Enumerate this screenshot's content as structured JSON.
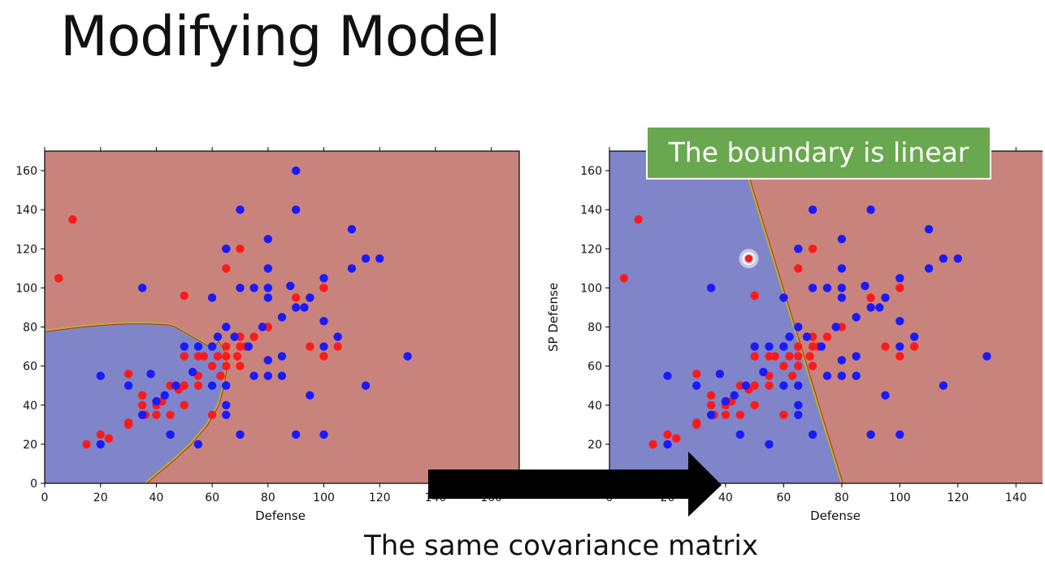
{
  "slide": {
    "title": "Modifying Model",
    "callout": "The boundary is linear",
    "caption": "The same covariance matrix"
  },
  "colors": {
    "class_red_region": "#c8847c",
    "class_blue_region": "#7f85c8",
    "point_red": "#ff1a1a",
    "point_blue": "#1a1aff",
    "callout_bg": "#6aa84f",
    "arrow": "#000000"
  },
  "chart_data": [
    {
      "type": "scatter",
      "title": "",
      "xlabel": "Defense",
      "ylabel": "",
      "xlim": [
        0,
        170
      ],
      "ylim": [
        0,
        170
      ],
      "xticks": [
        0,
        20,
        40,
        60,
        80,
        100,
        120,
        140,
        160
      ],
      "yticks": [
        0,
        20,
        40,
        60,
        80,
        100,
        120,
        140,
        160
      ],
      "boundary": "quadratic",
      "series": [
        {
          "class": "red",
          "points": [
            [
              5,
              105
            ],
            [
              10,
              135
            ],
            [
              15,
              20
            ],
            [
              20,
              25
            ],
            [
              23,
              23
            ],
            [
              30,
              30
            ],
            [
              30,
              56
            ],
            [
              30,
              31
            ],
            [
              35,
              45
            ],
            [
              35,
              40
            ],
            [
              36,
              35
            ],
            [
              35,
              45
            ],
            [
              40,
              40
            ],
            [
              40,
              35
            ],
            [
              42,
              42
            ],
            [
              45,
              35
            ],
            [
              45,
              50
            ],
            [
              48,
              48
            ],
            [
              50,
              40
            ],
            [
              50,
              50
            ],
            [
              50,
              65
            ],
            [
              50,
              96
            ],
            [
              55,
              50
            ],
            [
              55,
              55
            ],
            [
              55,
              65
            ],
            [
              57,
              65
            ],
            [
              60,
              35
            ],
            [
              60,
              70
            ],
            [
              60,
              60
            ],
            [
              62,
              65
            ],
            [
              63,
              55
            ],
            [
              65,
              50
            ],
            [
              65,
              60
            ],
            [
              65,
              65
            ],
            [
              65,
              70
            ],
            [
              65,
              110
            ],
            [
              65,
              120
            ],
            [
              69,
              65
            ],
            [
              70,
              60
            ],
            [
              70,
              70
            ],
            [
              70,
              75
            ],
            [
              70,
              120
            ],
            [
              72,
              70
            ],
            [
              75,
              75
            ],
            [
              80,
              55
            ],
            [
              80,
              80
            ],
            [
              90,
              95
            ],
            [
              95,
              70
            ],
            [
              100,
              65
            ],
            [
              100,
              100
            ],
            [
              105,
              70
            ]
          ]
        },
        {
          "class": "blue",
          "points": [
            [
              20,
              20
            ],
            [
              20,
              55
            ],
            [
              30,
              50
            ],
            [
              35,
              35
            ],
            [
              35,
              100
            ],
            [
              38,
              56
            ],
            [
              40,
              42
            ],
            [
              43,
              45
            ],
            [
              45,
              25
            ],
            [
              47,
              50
            ],
            [
              50,
              70
            ],
            [
              53,
              57
            ],
            [
              55,
              20
            ],
            [
              55,
              70
            ],
            [
              60,
              95
            ],
            [
              60,
              50
            ],
            [
              60,
              70
            ],
            [
              62,
              75
            ],
            [
              65,
              40
            ],
            [
              65,
              35
            ],
            [
              65,
              50
            ],
            [
              65,
              80
            ],
            [
              65,
              120
            ],
            [
              68,
              75
            ],
            [
              70,
              25
            ],
            [
              70,
              100
            ],
            [
              70,
              140
            ],
            [
              73,
              70
            ],
            [
              75,
              100
            ],
            [
              75,
              55
            ],
            [
              78,
              80
            ],
            [
              80,
              125
            ],
            [
              80,
              110
            ],
            [
              80,
              100
            ],
            [
              80,
              95
            ],
            [
              80,
              63
            ],
            [
              80,
              55
            ],
            [
              85,
              65
            ],
            [
              85,
              55
            ],
            [
              85,
              85
            ],
            [
              88,
              101
            ],
            [
              90,
              160
            ],
            [
              90,
              140
            ],
            [
              90,
              90
            ],
            [
              90,
              25
            ],
            [
              93,
              90
            ],
            [
              95,
              95
            ],
            [
              95,
              45
            ],
            [
              100,
              105
            ],
            [
              100,
              83
            ],
            [
              100,
              70
            ],
            [
              100,
              25
            ],
            [
              105,
              75
            ],
            [
              110,
              130
            ],
            [
              110,
              110
            ],
            [
              115,
              115
            ],
            [
              115,
              50
            ],
            [
              120,
              115
            ],
            [
              130,
              65
            ]
          ]
        }
      ]
    },
    {
      "type": "scatter",
      "title": "",
      "xlabel": "Defense",
      "ylabel": "SP Defense",
      "xlim": [
        0,
        150
      ],
      "ylim": [
        0,
        170
      ],
      "xticks": [
        0,
        20,
        40,
        60,
        80,
        100,
        120,
        140
      ],
      "yticks": [
        0,
        20,
        40,
        60,
        80,
        100,
        120,
        140,
        160
      ],
      "boundary": "linear",
      "highlight": [
        48,
        115
      ],
      "series": [
        {
          "class": "red",
          "points": [
            [
              5,
              105
            ],
            [
              10,
              135
            ],
            [
              15,
              20
            ],
            [
              20,
              25
            ],
            [
              23,
              23
            ],
            [
              30,
              30
            ],
            [
              30,
              56
            ],
            [
              30,
              31
            ],
            [
              35,
              45
            ],
            [
              35,
              40
            ],
            [
              36,
              35
            ],
            [
              40,
              40
            ],
            [
              40,
              35
            ],
            [
              42,
              42
            ],
            [
              45,
              35
            ],
            [
              45,
              50
            ],
            [
              48,
              48
            ],
            [
              48,
              115
            ],
            [
              50,
              40
            ],
            [
              50,
              50
            ],
            [
              50,
              65
            ],
            [
              50,
              96
            ],
            [
              55,
              50
            ],
            [
              55,
              55
            ],
            [
              55,
              65
            ],
            [
              57,
              65
            ],
            [
              60,
              35
            ],
            [
              60,
              70
            ],
            [
              60,
              60
            ],
            [
              62,
              65
            ],
            [
              63,
              55
            ],
            [
              65,
              50
            ],
            [
              65,
              60
            ],
            [
              65,
              65
            ],
            [
              65,
              70
            ],
            [
              65,
              110
            ],
            [
              65,
              120
            ],
            [
              69,
              65
            ],
            [
              70,
              60
            ],
            [
              70,
              70
            ],
            [
              70,
              75
            ],
            [
              70,
              120
            ],
            [
              72,
              70
            ],
            [
              75,
              75
            ],
            [
              80,
              55
            ],
            [
              80,
              80
            ],
            [
              90,
              95
            ],
            [
              95,
              70
            ],
            [
              100,
              65
            ],
            [
              100,
              100
            ],
            [
              105,
              70
            ]
          ]
        },
        {
          "class": "blue",
          "points": [
            [
              20,
              20
            ],
            [
              20,
              55
            ],
            [
              30,
              50
            ],
            [
              35,
              35
            ],
            [
              35,
              100
            ],
            [
              38,
              56
            ],
            [
              40,
              42
            ],
            [
              43,
              45
            ],
            [
              45,
              25
            ],
            [
              47,
              50
            ],
            [
              50,
              70
            ],
            [
              53,
              57
            ],
            [
              55,
              20
            ],
            [
              55,
              70
            ],
            [
              60,
              95
            ],
            [
              60,
              50
            ],
            [
              60,
              70
            ],
            [
              62,
              75
            ],
            [
              65,
              40
            ],
            [
              65,
              35
            ],
            [
              65,
              50
            ],
            [
              65,
              80
            ],
            [
              65,
              120
            ],
            [
              68,
              75
            ],
            [
              70,
              25
            ],
            [
              70,
              100
            ],
            [
              70,
              140
            ],
            [
              73,
              70
            ],
            [
              75,
              100
            ],
            [
              75,
              55
            ],
            [
              78,
              80
            ],
            [
              80,
              125
            ],
            [
              80,
              110
            ],
            [
              80,
              100
            ],
            [
              80,
              95
            ],
            [
              80,
              63
            ],
            [
              80,
              55
            ],
            [
              85,
              65
            ],
            [
              85,
              55
            ],
            [
              85,
              85
            ],
            [
              88,
              101
            ],
            [
              90,
              160
            ],
            [
              90,
              140
            ],
            [
              90,
              90
            ],
            [
              90,
              25
            ],
            [
              93,
              90
            ],
            [
              95,
              95
            ],
            [
              95,
              45
            ],
            [
              100,
              105
            ],
            [
              100,
              83
            ],
            [
              100,
              70
            ],
            [
              100,
              25
            ],
            [
              105,
              75
            ],
            [
              110,
              130
            ],
            [
              110,
              110
            ],
            [
              115,
              115
            ],
            [
              115,
              50
            ],
            [
              120,
              115
            ],
            [
              130,
              65
            ]
          ]
        }
      ]
    }
  ]
}
